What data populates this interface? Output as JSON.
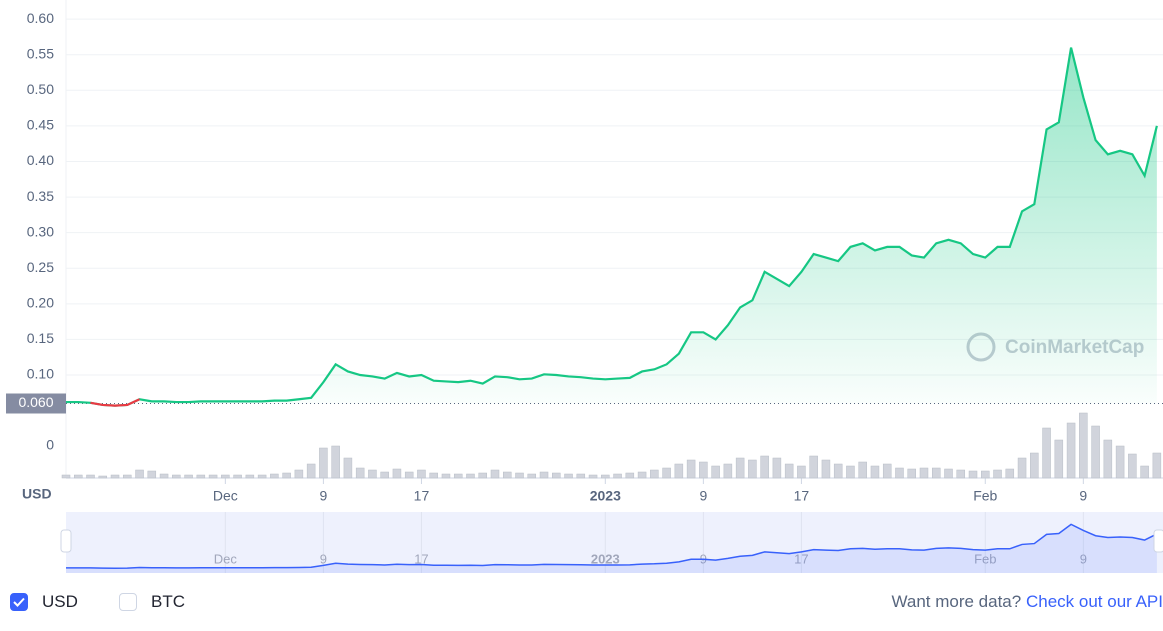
{
  "chart_data": {
    "type": "line",
    "x": [
      0,
      1,
      2,
      3,
      4,
      5,
      6,
      7,
      8,
      9,
      10,
      11,
      12,
      13,
      14,
      15,
      16,
      17,
      18,
      19,
      20,
      21,
      22,
      23,
      24,
      25,
      26,
      27,
      28,
      29,
      30,
      31,
      32,
      33,
      34,
      35,
      36,
      37,
      38,
      39,
      40,
      41,
      42,
      43,
      44,
      45,
      46,
      47,
      48,
      49,
      50,
      51,
      52,
      53,
      54,
      55,
      56,
      57,
      58,
      59,
      60,
      61,
      62,
      63,
      64,
      65,
      66,
      67,
      68,
      69,
      70,
      71,
      72,
      73,
      74,
      75,
      76,
      77,
      78,
      79,
      80,
      81,
      82,
      83,
      84,
      85,
      86,
      87,
      88,
      89
    ],
    "series": [
      {
        "color": "#16c784",
        "values": [
          0.062,
          0.062,
          0.061,
          0.058,
          0.057,
          0.058,
          0.066,
          0.063,
          0.063,
          0.062,
          0.062,
          0.063,
          0.063,
          0.063,
          0.063,
          0.063,
          0.063,
          0.064,
          0.064,
          0.066,
          0.068,
          0.09,
          0.115,
          0.105,
          0.1,
          0.098,
          0.095,
          0.103,
          0.098,
          0.1,
          0.092,
          0.091,
          0.09,
          0.092,
          0.088,
          0.098,
          0.097,
          0.094,
          0.095,
          0.101,
          0.1,
          0.098,
          0.097,
          0.095,
          0.094,
          0.095,
          0.096,
          0.105,
          0.108,
          0.115,
          0.13,
          0.16,
          0.16,
          0.15,
          0.17,
          0.195,
          0.205,
          0.245,
          0.235,
          0.225,
          0.245,
          0.27,
          0.265,
          0.26,
          0.28,
          0.285,
          0.275,
          0.28,
          0.28,
          0.268,
          0.265,
          0.285,
          0.29,
          0.285,
          0.27,
          0.265,
          0.28,
          0.28,
          0.33,
          0.34,
          0.445,
          0.455,
          0.56,
          0.49,
          0.43,
          0.41,
          0.415,
          0.41,
          0.38,
          0.45
        ]
      }
    ],
    "down_color": "#ea3943",
    "xlim": [
      0,
      89.5
    ],
    "xticks": [
      {
        "value": 13,
        "label": "Dec"
      },
      {
        "value": 21,
        "label": "9"
      },
      {
        "value": 29,
        "label": "17"
      },
      {
        "value": 44,
        "label": "2023"
      },
      {
        "value": 52,
        "label": "9"
      },
      {
        "value": 60,
        "label": "17"
      },
      {
        "value": 75,
        "label": "Feb"
      },
      {
        "value": 83,
        "label": "9"
      }
    ],
    "ylim": [
      0.06,
      0.61
    ],
    "yticks": [
      {
        "value": 0.1,
        "label": "0.10"
      },
      {
        "value": 0.15,
        "label": "0.15"
      },
      {
        "value": 0.2,
        "label": "0.20"
      },
      {
        "value": 0.25,
        "label": "0.25"
      },
      {
        "value": 0.3,
        "label": "0.30"
      },
      {
        "value": 0.35,
        "label": "0.35"
      },
      {
        "value": 0.4,
        "label": "0.40"
      },
      {
        "value": 0.45,
        "label": "0.45"
      },
      {
        "value": 0.5,
        "label": "0.50"
      },
      {
        "value": 0.55,
        "label": "0.55"
      },
      {
        "value": 0.6,
        "label": "0.60"
      }
    ],
    "reference": {
      "value": 0.06,
      "label": "0.060"
    },
    "grid": true,
    "axis_label": "USD",
    "watermark": "CoinMarketCap",
    "volume": {
      "ylim": [
        0,
        70
      ],
      "yticks": [
        0
      ],
      "color": "#d1d4dc",
      "values": [
        3,
        3,
        3,
        2,
        3,
        3,
        8,
        7,
        4,
        3,
        3,
        3,
        3,
        3,
        3,
        3,
        3,
        4,
        5,
        8,
        14,
        30,
        32,
        20,
        10,
        8,
        6,
        9,
        6,
        8,
        5,
        4,
        4,
        4,
        5,
        8,
        6,
        5,
        4,
        6,
        5,
        4,
        4,
        3,
        3,
        4,
        5,
        6,
        8,
        10,
        14,
        18,
        16,
        12,
        14,
        20,
        18,
        22,
        20,
        14,
        12,
        22,
        18,
        14,
        12,
        16,
        12,
        14,
        10,
        9,
        10,
        10,
        9,
        8,
        7,
        7,
        8,
        9,
        20,
        25,
        50,
        38,
        55,
        65,
        52,
        38,
        32,
        24,
        12,
        25
      ]
    },
    "navigator_color": "#3861fb"
  },
  "controls": {
    "currency_options": [
      {
        "label": "USD",
        "checked": true
      },
      {
        "label": "BTC",
        "checked": false
      }
    ],
    "api_prompt": "Want more data?",
    "api_link": "Check out our API"
  }
}
